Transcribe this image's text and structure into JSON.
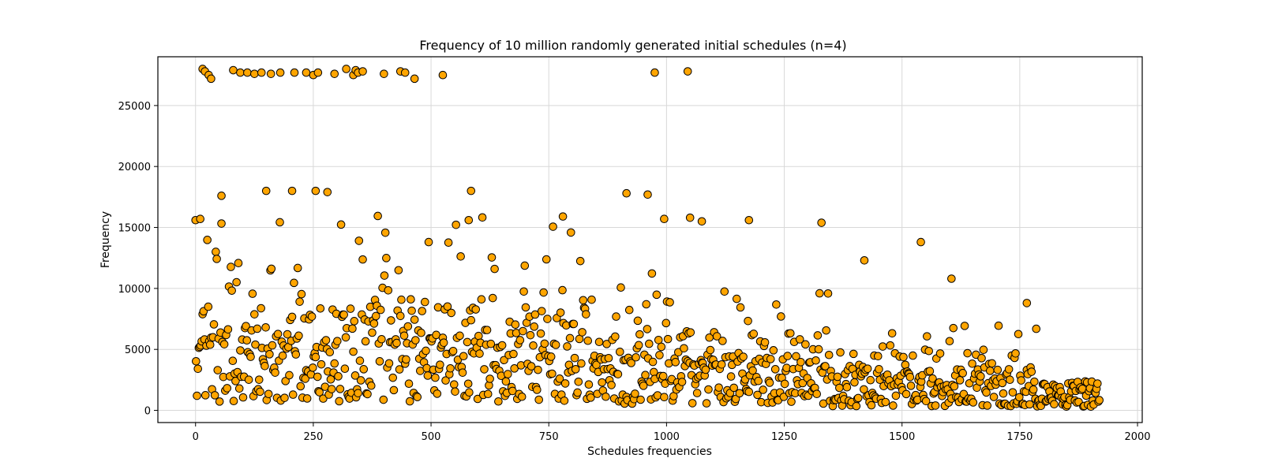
{
  "chart_data": {
    "type": "scatter",
    "title": "Frequency of 10 million randomly generated initial schedules (n=4)",
    "xlabel": "Schedules frequencies",
    "ylabel": "Frequency",
    "xlim": [
      -80,
      2010
    ],
    "ylim": [
      -1000,
      29000
    ],
    "xticks": [
      0,
      250,
      500,
      750,
      1000,
      1250,
      1500,
      1750,
      2000
    ],
    "yticks": [
      0,
      5000,
      10000,
      15000,
      20000,
      25000
    ],
    "xtick_labels": [
      "0",
      "250",
      "500",
      "750",
      "1000",
      "1250",
      "1500",
      "1750",
      "2000"
    ],
    "ytick_labels": [
      "0",
      "5000",
      "10000",
      "15000",
      "20000",
      "25000"
    ],
    "grid": true,
    "marker_color": "#FFA500",
    "marker_edge_color": "#000000",
    "x_range": [
      0,
      1920
    ],
    "point_count": 1920,
    "generation": "approximate reproduction of the point cloud sampled from observed bands",
    "notable_points": [
      {
        "x": 15,
        "y": 28000
      },
      {
        "x": 20,
        "y": 27800
      },
      {
        "x": 28,
        "y": 27500
      },
      {
        "x": 33,
        "y": 27200
      },
      {
        "x": 80,
        "y": 27900
      },
      {
        "x": 95,
        "y": 27700
      },
      {
        "x": 110,
        "y": 27700
      },
      {
        "x": 125,
        "y": 27600
      },
      {
        "x": 140,
        "y": 27700
      },
      {
        "x": 160,
        "y": 27600
      },
      {
        "x": 180,
        "y": 27700
      },
      {
        "x": 210,
        "y": 27700
      },
      {
        "x": 235,
        "y": 27700
      },
      {
        "x": 250,
        "y": 27500
      },
      {
        "x": 260,
        "y": 27700
      },
      {
        "x": 295,
        "y": 27600
      },
      {
        "x": 320,
        "y": 28000
      },
      {
        "x": 335,
        "y": 27500
      },
      {
        "x": 340,
        "y": 27900
      },
      {
        "x": 345,
        "y": 27700
      },
      {
        "x": 355,
        "y": 27800
      },
      {
        "x": 400,
        "y": 27600
      },
      {
        "x": 435,
        "y": 27800
      },
      {
        "x": 445,
        "y": 27700
      },
      {
        "x": 465,
        "y": 27200
      },
      {
        "x": 525,
        "y": 27500
      },
      {
        "x": 975,
        "y": 27700
      },
      {
        "x": 1045,
        "y": 27800
      },
      {
        "x": 55,
        "y": 17600
      },
      {
        "x": 150,
        "y": 18000
      },
      {
        "x": 205,
        "y": 18000
      },
      {
        "x": 255,
        "y": 18000
      },
      {
        "x": 280,
        "y": 17900
      },
      {
        "x": 585,
        "y": 18000
      },
      {
        "x": 915,
        "y": 17800
      },
      {
        "x": 960,
        "y": 17700
      },
      {
        "x": 1540,
        "y": 13800
      },
      {
        "x": 1420,
        "y": 12300
      },
      {
        "x": 1605,
        "y": 10800
      },
      {
        "x": 1765,
        "y": 8800
      },
      {
        "x": 0,
        "y": 15600
      },
      {
        "x": 10,
        "y": 15700
      },
      {
        "x": 580,
        "y": 15600
      },
      {
        "x": 1175,
        "y": 15600
      },
      {
        "x": 1050,
        "y": 15800
      },
      {
        "x": 995,
        "y": 15700
      },
      {
        "x": 780,
        "y": 15900
      },
      {
        "x": 1075,
        "y": 15500
      }
    ]
  }
}
